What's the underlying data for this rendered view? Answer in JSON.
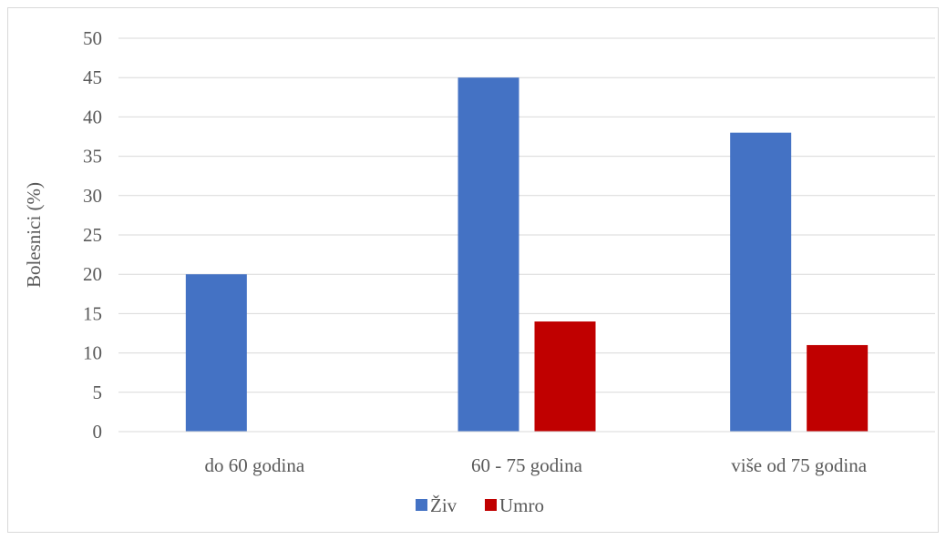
{
  "chart_data": {
    "type": "bar",
    "title": "",
    "xlabel": "",
    "ylabel": "Bolesnici (%)",
    "categories": [
      "do 60 godina",
      "60 - 75 godina",
      "više od 75 godina"
    ],
    "series": [
      {
        "name": "Živ",
        "color": "#4472c4",
        "values": [
          20,
          45,
          38
        ]
      },
      {
        "name": "Umro",
        "color": "#c00000",
        "values": [
          0,
          14,
          11
        ]
      }
    ],
    "ylim": [
      0,
      50
    ],
    "yticks": [
      0,
      5,
      10,
      15,
      20,
      25,
      30,
      35,
      40,
      45,
      50
    ],
    "grid": true,
    "legend_position": "bottom"
  }
}
